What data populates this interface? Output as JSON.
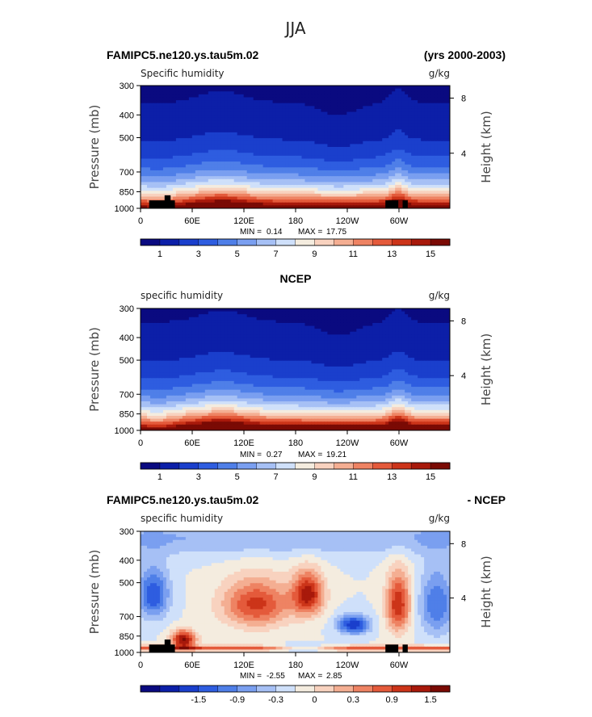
{
  "page_title": "JJA",
  "chart_data": [
    {
      "type": "heatmap",
      "header_left": "FAMIPC5.ne120.ys.tau5m.02",
      "header_right": "(yrs 2000-2003)",
      "var_left": "Specific humidity",
      "var_right": "g/kg",
      "ylabel_left": "Pressure (mb)",
      "ylabel_right": "Height (km)",
      "pressure_ticks": [
        "300",
        "400",
        "500",
        "700",
        "850",
        "1000"
      ],
      "height_ticks": [
        "8",
        "4"
      ],
      "x_ticks": [
        "0",
        "60E",
        "120E",
        "180",
        "120W",
        "60W"
      ],
      "min_label": "MIN =",
      "min_value": "0.14",
      "max_label": "MAX =",
      "max_value": "17.75",
      "colorbar_labels": [
        "1",
        "3",
        "5",
        "7",
        "9",
        "11",
        "13",
        "15"
      ],
      "kind": "abs",
      "ylim": [
        300,
        1000
      ],
      "xlim": [
        0,
        360
      ]
    },
    {
      "type": "heatmap",
      "header_center": "NCEP",
      "var_left": "specific humidity",
      "var_right": "g/kg",
      "ylabel_left": "Pressure (mb)",
      "ylabel_right": "Height (km)",
      "pressure_ticks": [
        "300",
        "400",
        "500",
        "700",
        "850",
        "1000"
      ],
      "height_ticks": [
        "8",
        "4"
      ],
      "x_ticks": [
        "0",
        "60E",
        "120E",
        "180",
        "120W",
        "60W"
      ],
      "min_label": "MIN =",
      "min_value": "0.27",
      "max_label": "MAX =",
      "max_value": "19.21",
      "colorbar_labels": [
        "1",
        "3",
        "5",
        "7",
        "9",
        "11",
        "13",
        "15"
      ],
      "kind": "abs",
      "ylim": [
        300,
        1000
      ],
      "xlim": [
        0,
        360
      ]
    },
    {
      "type": "heatmap",
      "header_left": "FAMIPC5.ne120.ys.tau5m.02",
      "header_right": "- NCEP",
      "var_left": "specific humidity",
      "var_right": "g/kg",
      "ylabel_left": "Pressure (mb)",
      "ylabel_right": "Height (km)",
      "pressure_ticks": [
        "300",
        "400",
        "500",
        "700",
        "850",
        "1000"
      ],
      "height_ticks": [
        "8",
        "4"
      ],
      "x_ticks": [
        "0",
        "60E",
        "120E",
        "180",
        "120W",
        "60W"
      ],
      "min_label": "MIN =",
      "min_value": "-2.55",
      "max_label": "MAX =",
      "max_value": "2.85",
      "colorbar_labels": [
        "-1.5",
        "-0.9",
        "-0.3",
        "0",
        "0.3",
        "0.9",
        "1.5"
      ],
      "kind": "diff",
      "ylim": [
        300,
        1000
      ],
      "xlim": [
        0,
        360
      ]
    }
  ],
  "colors": {
    "palette": [
      "#0a0a80",
      "#0c1fa8",
      "#1a3fcc",
      "#2e5de0",
      "#4f7fe8",
      "#7a9ff0",
      "#a6c0f5",
      "#cfe0fa",
      "#f4ecdf",
      "#f8d2bf",
      "#f4ae92",
      "#ee8363",
      "#e45a3b",
      "#cc3419",
      "#a8190b",
      "#7a0a04"
    ],
    "terrain": "#000000"
  }
}
